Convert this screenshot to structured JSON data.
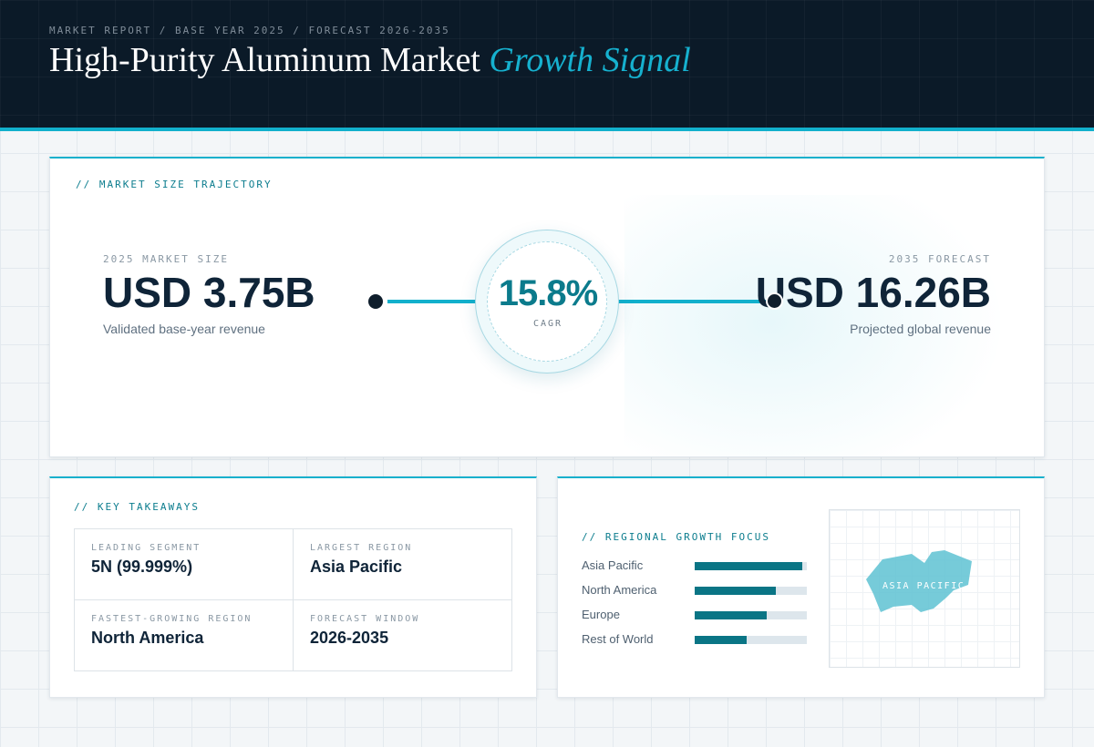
{
  "header": {
    "breadcrumb": "MARKET REPORT / BASE YEAR 2025 / FORECAST 2026-2035",
    "title_main": "High-Purity Aluminum Market",
    "title_accent": "Growth Signal"
  },
  "trajectory": {
    "section_label": "// MARKET SIZE TRAJECTORY",
    "start": {
      "label": "2025 MARKET SIZE",
      "value": "USD 3.75B",
      "description": "Validated base-year revenue"
    },
    "cagr": {
      "value": "15.8%",
      "label": "CAGR"
    },
    "end": {
      "label": "2035 FORECAST",
      "value": "USD 16.26B",
      "description": "Projected global revenue"
    }
  },
  "takeaways": {
    "section_label": "// KEY TAKEAWAYS",
    "items": [
      {
        "label": "LEADING SEGMENT",
        "value": "5N (99.999%)"
      },
      {
        "label": "LARGEST REGION",
        "value": "Asia Pacific"
      },
      {
        "label": "FASTEST-GROWING REGION",
        "value": "North America"
      },
      {
        "label": "FORECAST WINDOW",
        "value": "2026-2035"
      }
    ]
  },
  "regional": {
    "section_label": "// REGIONAL GROWTH FOCUS",
    "regions": [
      {
        "name": "Asia Pacific",
        "share": 0.96
      },
      {
        "name": "North America",
        "share": 0.72
      },
      {
        "name": "Europe",
        "share": 0.64
      },
      {
        "name": "Rest of World",
        "share": 0.46
      }
    ],
    "map_label": "ASIA PACIFIC"
  },
  "colors": {
    "accent": "#12b0cc",
    "accent_dark": "#0b7b8c",
    "header_bg": "#0b1a28",
    "text_dark": "#0f2438",
    "map_region": "#5ec2d2"
  }
}
